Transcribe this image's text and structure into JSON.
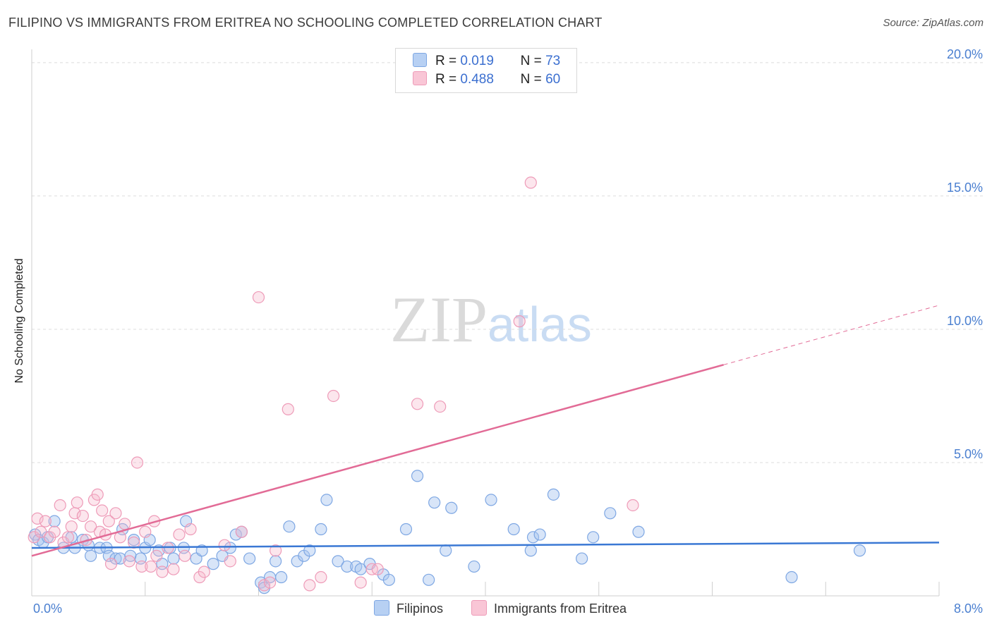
{
  "title": "FILIPINO VS IMMIGRANTS FROM ERITREA NO SCHOOLING COMPLETED CORRELATION CHART",
  "source": "Source: ZipAtlas.com",
  "watermark": {
    "zip": "ZIP",
    "atlas": "atlas"
  },
  "legend": {
    "row1": {
      "r_label": "R =",
      "r_value": "0.019",
      "n_label": "N =",
      "n_value": "73"
    },
    "row2": {
      "r_label": "R =",
      "r_value": "0.488",
      "n_label": "N =",
      "n_value": "60"
    }
  },
  "chart_data": {
    "type": "scatter",
    "title": "FILIPINO VS IMMIGRANTS FROM ERITREA NO SCHOOLING COMPLETED CORRELATION CHART",
    "xlabel": "",
    "ylabel": "No Schooling Completed",
    "xlim": [
      0,
      8
    ],
    "ylim": [
      0,
      20.5
    ],
    "x_tick_labels": [
      "0.0%",
      "8.0%"
    ],
    "y_ticks": [
      5,
      10,
      15,
      20
    ],
    "y_tick_labels": [
      "5.0%",
      "10.0%",
      "15.0%",
      "20.0%"
    ],
    "grid": true,
    "legend_position": "top-center",
    "colors": {
      "filipinos": "#a8c6f0",
      "filipinos_line": "#3a78d4",
      "eritrea": "#f6b7cb",
      "eritrea_line": "#e26b96"
    },
    "series": [
      {
        "name": "Filipinos",
        "r": 0.019,
        "n": 73,
        "trend": {
          "x": [
            0,
            8
          ],
          "y": [
            1.8,
            2.0
          ]
        },
        "points": [
          [
            0.03,
            2.3
          ],
          [
            0.06,
            2.1
          ],
          [
            0.1,
            2.0
          ],
          [
            0.14,
            2.2
          ],
          [
            0.2,
            2.8
          ],
          [
            0.28,
            1.8
          ],
          [
            0.35,
            2.2
          ],
          [
            0.38,
            1.8
          ],
          [
            0.45,
            2.1
          ],
          [
            0.5,
            1.9
          ],
          [
            0.52,
            1.5
          ],
          [
            0.6,
            1.8
          ],
          [
            0.66,
            1.8
          ],
          [
            0.68,
            1.5
          ],
          [
            0.74,
            1.4
          ],
          [
            0.78,
            1.4
          ],
          [
            0.8,
            2.5
          ],
          [
            0.87,
            1.5
          ],
          [
            0.9,
            2.1
          ],
          [
            0.96,
            1.4
          ],
          [
            1.0,
            1.8
          ],
          [
            1.04,
            2.1
          ],
          [
            1.12,
            1.7
          ],
          [
            1.15,
            1.2
          ],
          [
            1.22,
            1.8
          ],
          [
            1.25,
            1.4
          ],
          [
            1.34,
            1.8
          ],
          [
            1.36,
            2.8
          ],
          [
            1.45,
            1.4
          ],
          [
            1.5,
            1.7
          ],
          [
            1.6,
            1.2
          ],
          [
            1.68,
            1.5
          ],
          [
            1.75,
            1.8
          ],
          [
            1.8,
            2.3
          ],
          [
            1.85,
            2.4
          ],
          [
            1.92,
            1.4
          ],
          [
            2.02,
            0.5
          ],
          [
            2.05,
            0.3
          ],
          [
            2.1,
            0.7
          ],
          [
            2.15,
            1.3
          ],
          [
            2.2,
            0.7
          ],
          [
            2.27,
            2.6
          ],
          [
            2.34,
            1.3
          ],
          [
            2.4,
            1.5
          ],
          [
            2.45,
            1.7
          ],
          [
            2.55,
            2.5
          ],
          [
            2.6,
            3.6
          ],
          [
            2.7,
            1.3
          ],
          [
            2.78,
            1.1
          ],
          [
            2.86,
            1.1
          ],
          [
            2.9,
            1.0
          ],
          [
            2.98,
            1.2
          ],
          [
            3.1,
            0.8
          ],
          [
            3.15,
            0.6
          ],
          [
            3.3,
            2.5
          ],
          [
            3.4,
            4.5
          ],
          [
            3.5,
            0.6
          ],
          [
            3.55,
            3.5
          ],
          [
            3.65,
            1.7
          ],
          [
            3.7,
            3.3
          ],
          [
            3.9,
            1.1
          ],
          [
            4.05,
            3.6
          ],
          [
            4.25,
            2.5
          ],
          [
            4.4,
            1.7
          ],
          [
            4.42,
            2.2
          ],
          [
            4.48,
            2.3
          ],
          [
            4.6,
            3.8
          ],
          [
            4.85,
            1.4
          ],
          [
            4.95,
            2.2
          ],
          [
            5.1,
            3.1
          ],
          [
            5.35,
            2.4
          ],
          [
            6.7,
            0.7
          ],
          [
            7.3,
            1.7
          ]
        ]
      },
      {
        "name": "Immigrants from Eritrea",
        "r": 0.488,
        "n": 60,
        "trend": {
          "x": [
            0,
            8
          ],
          "y": [
            1.5,
            10.9
          ]
        },
        "points": [
          [
            0.02,
            2.2
          ],
          [
            0.05,
            2.9
          ],
          [
            0.08,
            2.4
          ],
          [
            0.12,
            2.8
          ],
          [
            0.16,
            2.2
          ],
          [
            0.2,
            2.4
          ],
          [
            0.25,
            3.4
          ],
          [
            0.28,
            2.0
          ],
          [
            0.32,
            2.2
          ],
          [
            0.35,
            2.6
          ],
          [
            0.38,
            3.1
          ],
          [
            0.4,
            3.5
          ],
          [
            0.45,
            3.0
          ],
          [
            0.48,
            2.1
          ],
          [
            0.52,
            2.6
          ],
          [
            0.55,
            3.6
          ],
          [
            0.58,
            3.8
          ],
          [
            0.6,
            2.4
          ],
          [
            0.62,
            3.2
          ],
          [
            0.65,
            2.3
          ],
          [
            0.68,
            2.8
          ],
          [
            0.7,
            1.2
          ],
          [
            0.74,
            3.1
          ],
          [
            0.78,
            2.2
          ],
          [
            0.82,
            2.7
          ],
          [
            0.86,
            1.3
          ],
          [
            0.9,
            2.0
          ],
          [
            0.93,
            5.0
          ],
          [
            0.97,
            1.1
          ],
          [
            1.0,
            2.4
          ],
          [
            1.05,
            1.1
          ],
          [
            1.08,
            2.8
          ],
          [
            1.1,
            1.5
          ],
          [
            1.15,
            0.9
          ],
          [
            1.2,
            1.8
          ],
          [
            1.25,
            1.0
          ],
          [
            1.3,
            2.3
          ],
          [
            1.35,
            1.5
          ],
          [
            1.4,
            2.5
          ],
          [
            1.48,
            0.7
          ],
          [
            1.52,
            0.9
          ],
          [
            1.7,
            1.9
          ],
          [
            1.75,
            1.3
          ],
          [
            1.85,
            2.4
          ],
          [
            2.0,
            11.2
          ],
          [
            2.05,
            0.4
          ],
          [
            2.1,
            0.5
          ],
          [
            2.15,
            1.7
          ],
          [
            2.26,
            7.0
          ],
          [
            2.45,
            0.4
          ],
          [
            2.55,
            0.7
          ],
          [
            2.66,
            7.5
          ],
          [
            2.9,
            0.5
          ],
          [
            3.0,
            1.0
          ],
          [
            3.05,
            1.0
          ],
          [
            3.4,
            7.2
          ],
          [
            3.6,
            7.1
          ],
          [
            4.3,
            10.3
          ],
          [
            4.4,
            15.5
          ],
          [
            5.3,
            3.4
          ]
        ]
      }
    ]
  },
  "bottom_legend": {
    "series1": "Filipinos",
    "series2": "Immigrants from Eritrea"
  }
}
